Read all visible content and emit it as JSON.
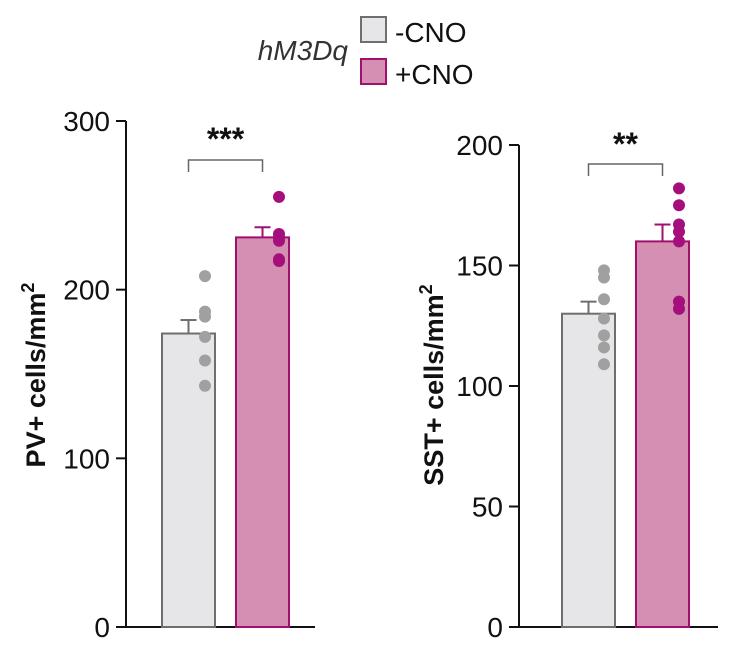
{
  "legend": {
    "title": "hM3Dq",
    "items": [
      {
        "label": "-CNO",
        "fill": "#e6e6e8",
        "stroke": "#6e6e6e"
      },
      {
        "label": "+CNO",
        "fill": "#d48fb3",
        "stroke": "#a0106e"
      }
    ]
  },
  "colors": {
    "ctrl_fill": "#e6e6e8",
    "ctrl_stroke": "#6e6e6e",
    "ctrl_dots": "#a0a0a0",
    "cno_fill": "#d48fb3",
    "cno_stroke": "#a0106e",
    "cno_dots": "#a50f7c"
  },
  "chart_data": [
    {
      "type": "bar",
      "ylabel_main": "PV+ cells/mm",
      "ylabel_sup": "2",
      "ylim": [
        0,
        300
      ],
      "yticks": [
        0,
        100,
        200,
        300
      ],
      "ytick_labels": [
        "0",
        "100",
        "200",
        "300"
      ],
      "categories": [
        "-CNO",
        "+CNO"
      ],
      "values": [
        174,
        231
      ],
      "errors": [
        8,
        6
      ],
      "points": [
        [
          208,
          187,
          184,
          172,
          158,
          143
        ],
        [
          255,
          233,
          231,
          229,
          218,
          217
        ]
      ],
      "significance": "***"
    },
    {
      "type": "bar",
      "ylabel_main": "SST+ cells/mm",
      "ylabel_sup": "2",
      "ylim": [
        0,
        200
      ],
      "yticks": [
        0,
        50,
        100,
        150,
        200
      ],
      "ytick_labels": [
        "0",
        "50",
        "100",
        "150",
        "200"
      ],
      "categories": [
        "-CNO",
        "+CNO"
      ],
      "values": [
        130,
        160
      ],
      "errors": [
        5,
        7
      ],
      "points": [
        [
          148,
          145,
          136,
          128,
          121,
          116,
          109
        ],
        [
          182,
          175,
          167,
          164,
          160,
          135,
          132
        ]
      ],
      "significance": "**"
    }
  ]
}
